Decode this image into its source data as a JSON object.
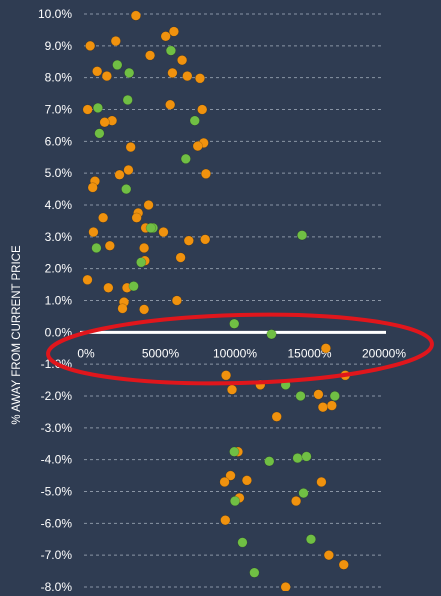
{
  "chart_data": {
    "type": "scatter",
    "title": "",
    "xlabel": "",
    "ylabel": "% AWAY FROM CURRENT PRICE",
    "x_ticks": [
      "0%",
      "5000%",
      "10000%",
      "15000%",
      "20000%"
    ],
    "y_ticks": [
      "10.0%",
      "9.0%",
      "8.0%",
      "7.0%",
      "6.0%",
      "5.0%",
      "4.0%",
      "3.0%",
      "2.0%",
      "1.0%",
      "0.0%",
      "-1.0%",
      "-2.0%",
      "-3.0%",
      "-4.0%",
      "-5.0%",
      "-6.0%",
      "-7.0%",
      "-8.0%"
    ],
    "xlim": [
      0,
      20000
    ],
    "ylim": [
      -8.0,
      10.0
    ],
    "grid": "horizontal-dashed",
    "colors": {
      "background": "#2f3c52",
      "orange": "#f0920e",
      "green": "#70bf44",
      "zero_line": "#ffffff",
      "grid": "#a9b3c1",
      "text": "#ffffff",
      "annotation": "#e0161c"
    },
    "series": [
      {
        "color": "orange",
        "points": [
          [
            3350,
            9.95
          ],
          [
            5900,
            9.45
          ],
          [
            5350,
            9.3
          ],
          [
            2000,
            9.15
          ],
          [
            280,
            9.0
          ],
          [
            4300,
            8.7
          ],
          [
            6450,
            8.55
          ],
          [
            5800,
            8.15
          ],
          [
            750,
            8.2
          ],
          [
            1400,
            8.05
          ],
          [
            6800,
            8.05
          ],
          [
            7650,
            7.98
          ],
          [
            110,
            7.0
          ],
          [
            5650,
            7.15
          ],
          [
            7800,
            7.0
          ],
          [
            1750,
            6.65
          ],
          [
            1250,
            6.6
          ],
          [
            7900,
            5.95
          ],
          [
            7500,
            5.85
          ],
          [
            3000,
            5.82
          ],
          [
            2250,
            4.95
          ],
          [
            2850,
            5.1
          ],
          [
            8050,
            4.98
          ],
          [
            600,
            4.75
          ],
          [
            450,
            4.55
          ],
          [
            4200,
            4.0
          ],
          [
            3500,
            3.75
          ],
          [
            1150,
            3.6
          ],
          [
            3400,
            3.6
          ],
          [
            5200,
            3.15
          ],
          [
            500,
            3.15
          ],
          [
            4000,
            3.28
          ],
          [
            6900,
            2.88
          ],
          [
            8000,
            2.92
          ],
          [
            1600,
            2.72
          ],
          [
            3900,
            2.65
          ],
          [
            6350,
            2.35
          ],
          [
            3950,
            2.25
          ],
          [
            100,
            1.65
          ],
          [
            1500,
            1.4
          ],
          [
            2750,
            1.4
          ],
          [
            2550,
            0.95
          ],
          [
            6100,
            1.0
          ],
          [
            2450,
            0.75
          ],
          [
            3900,
            0.72
          ],
          [
            16100,
            -0.5
          ],
          [
            17400,
            -1.35
          ],
          [
            9400,
            -1.35
          ],
          [
            9800,
            -1.8
          ],
          [
            11700,
            -1.65
          ],
          [
            15600,
            -1.95
          ],
          [
            15900,
            -2.35
          ],
          [
            16500,
            -2.3
          ],
          [
            12800,
            -2.65
          ],
          [
            10200,
            -3.75
          ],
          [
            9700,
            -4.5
          ],
          [
            9300,
            -4.7
          ],
          [
            10300,
            -5.2
          ],
          [
            10800,
            -4.65
          ],
          [
            14100,
            -5.3
          ],
          [
            15800,
            -4.7
          ],
          [
            9350,
            -5.9
          ],
          [
            16300,
            -7.0
          ],
          [
            17300,
            -7.3
          ],
          [
            13400,
            -8.0
          ]
        ]
      },
      {
        "color": "green",
        "points": [
          [
            5700,
            8.85
          ],
          [
            2100,
            8.4
          ],
          [
            2900,
            8.15
          ],
          [
            2800,
            7.3
          ],
          [
            800,
            7.05
          ],
          [
            7300,
            6.65
          ],
          [
            900,
            6.25
          ],
          [
            6700,
            5.45
          ],
          [
            2700,
            4.5
          ],
          [
            4500,
            3.28
          ],
          [
            4350,
            3.28
          ],
          [
            14500,
            3.05
          ],
          [
            700,
            2.65
          ],
          [
            3700,
            2.2
          ],
          [
            3200,
            1.45
          ],
          [
            9950,
            0.27
          ],
          [
            12450,
            -0.06
          ],
          [
            13400,
            -1.65
          ],
          [
            14400,
            -2.0
          ],
          [
            16700,
            -2.0
          ],
          [
            9950,
            -3.75
          ],
          [
            12300,
            -4.05
          ],
          [
            14200,
            -3.95
          ],
          [
            14800,
            -3.9
          ],
          [
            14600,
            -5.05
          ],
          [
            10000,
            -5.3
          ],
          [
            10500,
            -6.6
          ],
          [
            15100,
            -6.5
          ],
          [
            11300,
            -7.55
          ]
        ]
      }
    ]
  }
}
